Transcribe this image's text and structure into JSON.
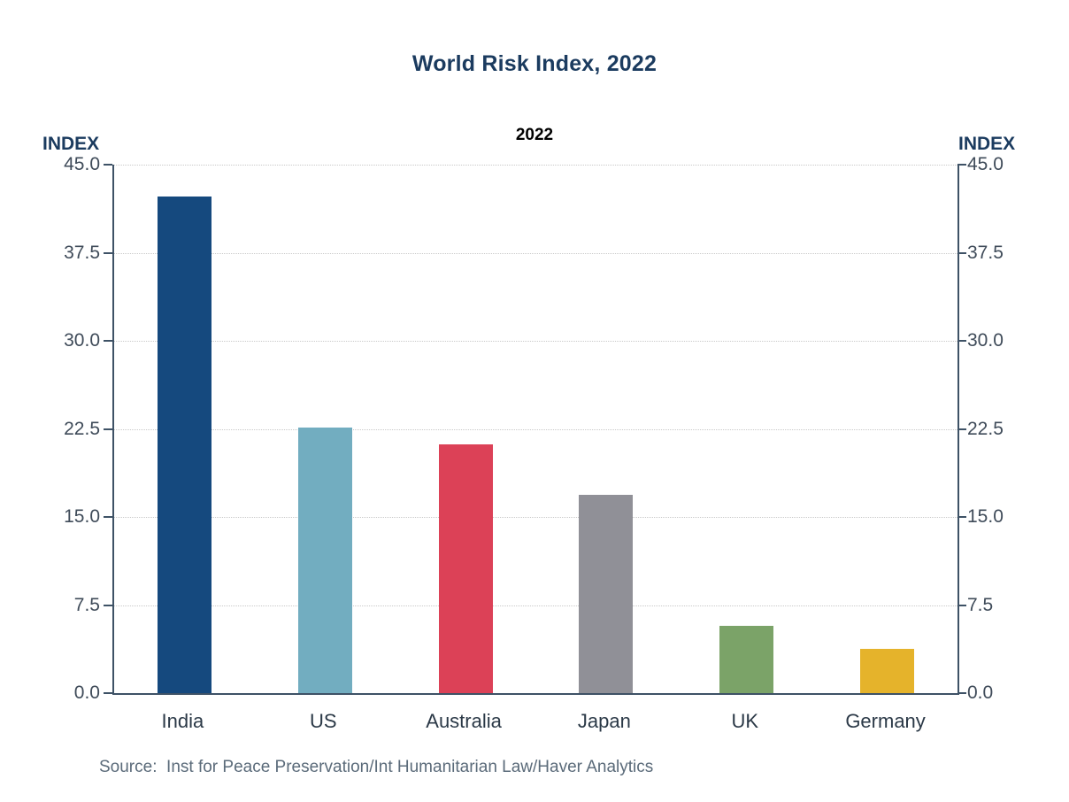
{
  "title": "World Risk Index, 2022",
  "subtitle": "2022",
  "y_axis_label_left": "INDEX",
  "y_axis_label_right": "INDEX",
  "source": "Source:  Inst for Peace Preservation/Int Humanitarian Law/Haver Analytics",
  "colors": {
    "title": "#1B3B5F",
    "subtitle": "#000000",
    "axis_line": "#3E5266",
    "tick_text": "#3F4B59",
    "category_text": "#2B3947",
    "gridline": "#C9C9C9",
    "source_text": "#5B6B7A",
    "background": "#FFFFFF"
  },
  "chart_data": {
    "type": "bar",
    "title": "World Risk Index, 2022",
    "subtitle": "2022",
    "ylabel": "INDEX",
    "ylabel_right": "INDEX",
    "xlabel": "",
    "ylim": [
      0,
      45
    ],
    "yticks": [
      0.0,
      7.5,
      15.0,
      22.5,
      30.0,
      37.5,
      45.0
    ],
    "ytick_labels": [
      "0.0",
      "7.5",
      "15.0",
      "22.5",
      "30.0",
      "37.5",
      "45.0"
    ],
    "grid": "horizontal-dotted",
    "legend": "none",
    "categories": [
      "India",
      "US",
      "Australia",
      "Japan",
      "UK",
      "Germany"
    ],
    "values": [
      42.3,
      22.6,
      21.2,
      16.9,
      5.7,
      3.8
    ],
    "bar_colors": [
      "#15497E",
      "#72ADC0",
      "#DC4157",
      "#909097",
      "#7BA368",
      "#E5B32B"
    ],
    "source": "Source:  Inst for Peace Preservation/Int Humanitarian Law/Haver Analytics"
  }
}
